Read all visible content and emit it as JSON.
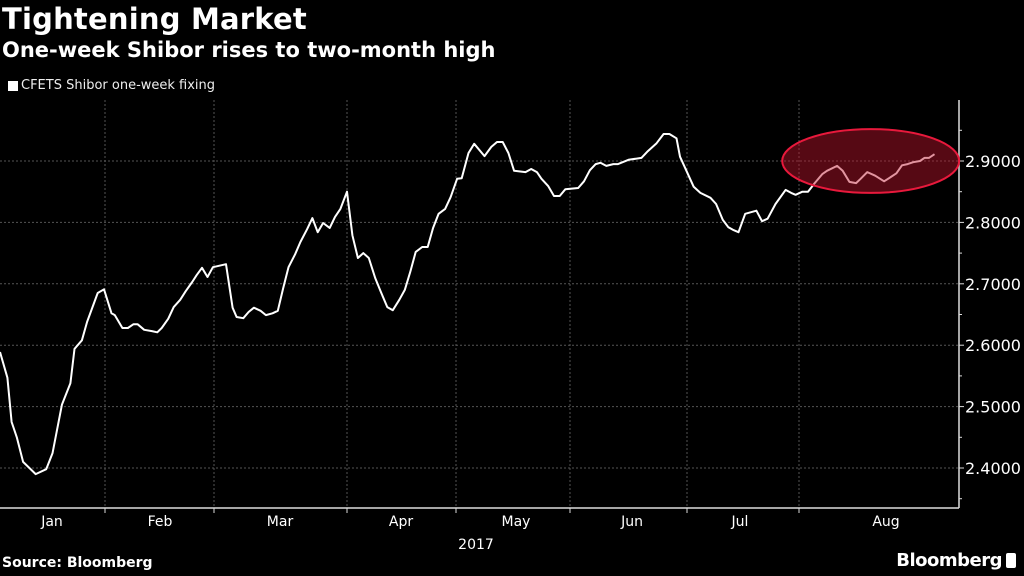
{
  "chart_data": {
    "type": "line",
    "title": "Tightening Market",
    "subtitle": "One-week Shibor rises to two-month high",
    "legend": [
      "CFETS Shibor one-week fixing"
    ],
    "legend_placement": "top-left",
    "xlabel": "2017",
    "ylabel": "",
    "x_unit": "months since Jan 1 2017",
    "x_tick_labels": [
      "Jan",
      "Feb",
      "Mar",
      "Apr",
      "May",
      "Jun",
      "Jul",
      "Aug"
    ],
    "y_tick_labels": [
      "2.4000",
      "2.5000",
      "2.6000",
      "2.7000",
      "2.8000",
      "2.9000"
    ],
    "y_ticks": [
      2.4,
      2.5,
      2.6,
      2.7,
      2.8,
      2.9
    ],
    "ylim": [
      2.335,
      3.0
    ],
    "grid": true,
    "highlight": {
      "shape": "ellipse",
      "color": "#e8193c",
      "x_range": [
        6.85,
        8.43
      ],
      "y_range": [
        2.848,
        2.952
      ]
    },
    "series": [
      {
        "name": "CFETS Shibor one-week fixing",
        "color": "#ffffff",
        "points": [
          [
            0.0,
            2.589
          ],
          [
            0.07,
            2.547
          ],
          [
            0.11,
            2.475
          ],
          [
            0.16,
            2.45
          ],
          [
            0.22,
            2.41
          ],
          [
            0.34,
            2.39
          ],
          [
            0.44,
            2.398
          ],
          [
            0.5,
            2.424
          ],
          [
            0.59,
            2.503
          ],
          [
            0.67,
            2.538
          ],
          [
            0.71,
            2.594
          ],
          [
            0.78,
            2.608
          ],
          [
            0.83,
            2.638
          ],
          [
            0.93,
            2.685
          ],
          [
            0.99,
            2.691
          ],
          [
            1.06,
            2.652
          ],
          [
            1.09,
            2.649
          ],
          [
            1.16,
            2.628
          ],
          [
            1.21,
            2.628
          ],
          [
            1.26,
            2.634
          ],
          [
            1.3,
            2.634
          ],
          [
            1.36,
            2.625
          ],
          [
            1.43,
            2.623
          ],
          [
            1.48,
            2.621
          ],
          [
            1.52,
            2.628
          ],
          [
            1.58,
            2.643
          ],
          [
            1.63,
            2.662
          ],
          [
            1.69,
            2.674
          ],
          [
            1.74,
            2.688
          ],
          [
            1.8,
            2.703
          ],
          [
            1.84,
            2.714
          ],
          [
            1.89,
            2.726
          ],
          [
            1.94,
            2.711
          ],
          [
            1.99,
            2.727
          ],
          [
            2.09,
            2.732
          ],
          [
            2.14,
            2.661
          ],
          [
            2.17,
            2.646
          ],
          [
            2.22,
            2.644
          ],
          [
            2.26,
            2.654
          ],
          [
            2.3,
            2.661
          ],
          [
            2.35,
            2.656
          ],
          [
            2.39,
            2.649
          ],
          [
            2.44,
            2.652
          ],
          [
            2.48,
            2.656
          ],
          [
            2.52,
            2.693
          ],
          [
            2.56,
            2.727
          ],
          [
            2.61,
            2.748
          ],
          [
            2.65,
            2.768
          ],
          [
            2.7,
            2.789
          ],
          [
            2.74,
            2.807
          ],
          [
            2.78,
            2.784
          ],
          [
            2.82,
            2.799
          ],
          [
            2.87,
            2.791
          ],
          [
            2.91,
            2.809
          ],
          [
            2.95,
            2.822
          ],
          [
            3.0,
            2.85
          ],
          [
            3.05,
            2.779
          ],
          [
            3.1,
            2.742
          ],
          [
            3.15,
            2.75
          ],
          [
            3.2,
            2.742
          ],
          [
            3.26,
            2.709
          ],
          [
            3.31,
            2.687
          ],
          [
            3.37,
            2.662
          ],
          [
            3.42,
            2.657
          ],
          [
            3.48,
            2.674
          ],
          [
            3.53,
            2.69
          ],
          [
            3.58,
            2.719
          ],
          [
            3.63,
            2.752
          ],
          [
            3.69,
            2.76
          ],
          [
            3.74,
            2.76
          ],
          [
            3.79,
            2.791
          ],
          [
            3.84,
            2.814
          ],
          [
            3.9,
            2.822
          ],
          [
            3.95,
            2.841
          ],
          [
            4.01,
            2.871
          ],
          [
            4.05,
            2.872
          ],
          [
            4.11,
            2.913
          ],
          [
            4.16,
            2.928
          ],
          [
            4.25,
            2.908
          ],
          [
            4.31,
            2.923
          ],
          [
            4.36,
            2.931
          ],
          [
            4.41,
            2.931
          ],
          [
            4.46,
            2.913
          ],
          [
            4.51,
            2.884
          ],
          [
            4.61,
            2.882
          ],
          [
            4.66,
            2.887
          ],
          [
            4.71,
            2.882
          ],
          [
            4.75,
            2.871
          ],
          [
            4.81,
            2.859
          ],
          [
            4.86,
            2.843
          ],
          [
            4.91,
            2.843
          ],
          [
            4.96,
            2.854
          ],
          [
            5.07,
            2.856
          ],
          [
            5.12,
            2.867
          ],
          [
            5.17,
            2.885
          ],
          [
            5.22,
            2.895
          ],
          [
            5.26,
            2.897
          ],
          [
            5.31,
            2.892
          ],
          [
            5.37,
            2.895
          ],
          [
            5.41,
            2.895
          ],
          [
            5.5,
            2.902
          ],
          [
            5.61,
            2.905
          ],
          [
            5.66,
            2.915
          ],
          [
            5.74,
            2.929
          ],
          [
            5.8,
            2.944
          ],
          [
            5.85,
            2.944
          ],
          [
            5.91,
            2.937
          ],
          [
            5.94,
            2.907
          ],
          [
            6.0,
            2.882
          ],
          [
            6.06,
            2.858
          ],
          [
            6.12,
            2.848
          ],
          [
            6.21,
            2.84
          ],
          [
            6.26,
            2.83
          ],
          [
            6.32,
            2.804
          ],
          [
            6.37,
            2.792
          ],
          [
            6.41,
            2.788
          ],
          [
            6.46,
            2.784
          ],
          [
            6.52,
            2.814
          ],
          [
            6.62,
            2.819
          ],
          [
            6.67,
            2.802
          ],
          [
            6.72,
            2.806
          ],
          [
            6.79,
            2.83
          ],
          [
            6.88,
            2.853
          ],
          [
            6.93,
            2.848
          ],
          [
            6.97,
            2.845
          ],
          [
            7.03,
            2.85
          ],
          [
            7.08,
            2.85
          ],
          [
            7.14,
            2.864
          ],
          [
            7.21,
            2.879
          ],
          [
            7.25,
            2.884
          ],
          [
            7.34,
            2.892
          ],
          [
            7.39,
            2.884
          ],
          [
            7.45,
            2.866
          ],
          [
            7.51,
            2.864
          ],
          [
            7.55,
            2.871
          ],
          [
            7.61,
            2.882
          ],
          [
            7.68,
            2.876
          ],
          [
            7.76,
            2.867
          ],
          [
            7.82,
            2.874
          ],
          [
            7.87,
            2.88
          ],
          [
            7.92,
            2.893
          ],
          [
            7.97,
            2.895
          ],
          [
            8.02,
            2.898
          ],
          [
            8.08,
            2.9
          ],
          [
            8.12,
            2.905
          ],
          [
            8.16,
            2.905
          ],
          [
            8.21,
            2.911
          ]
        ]
      }
    ]
  },
  "footer": {
    "source": "Source: Bloomberg",
    "logo": "Bloomberg"
  }
}
